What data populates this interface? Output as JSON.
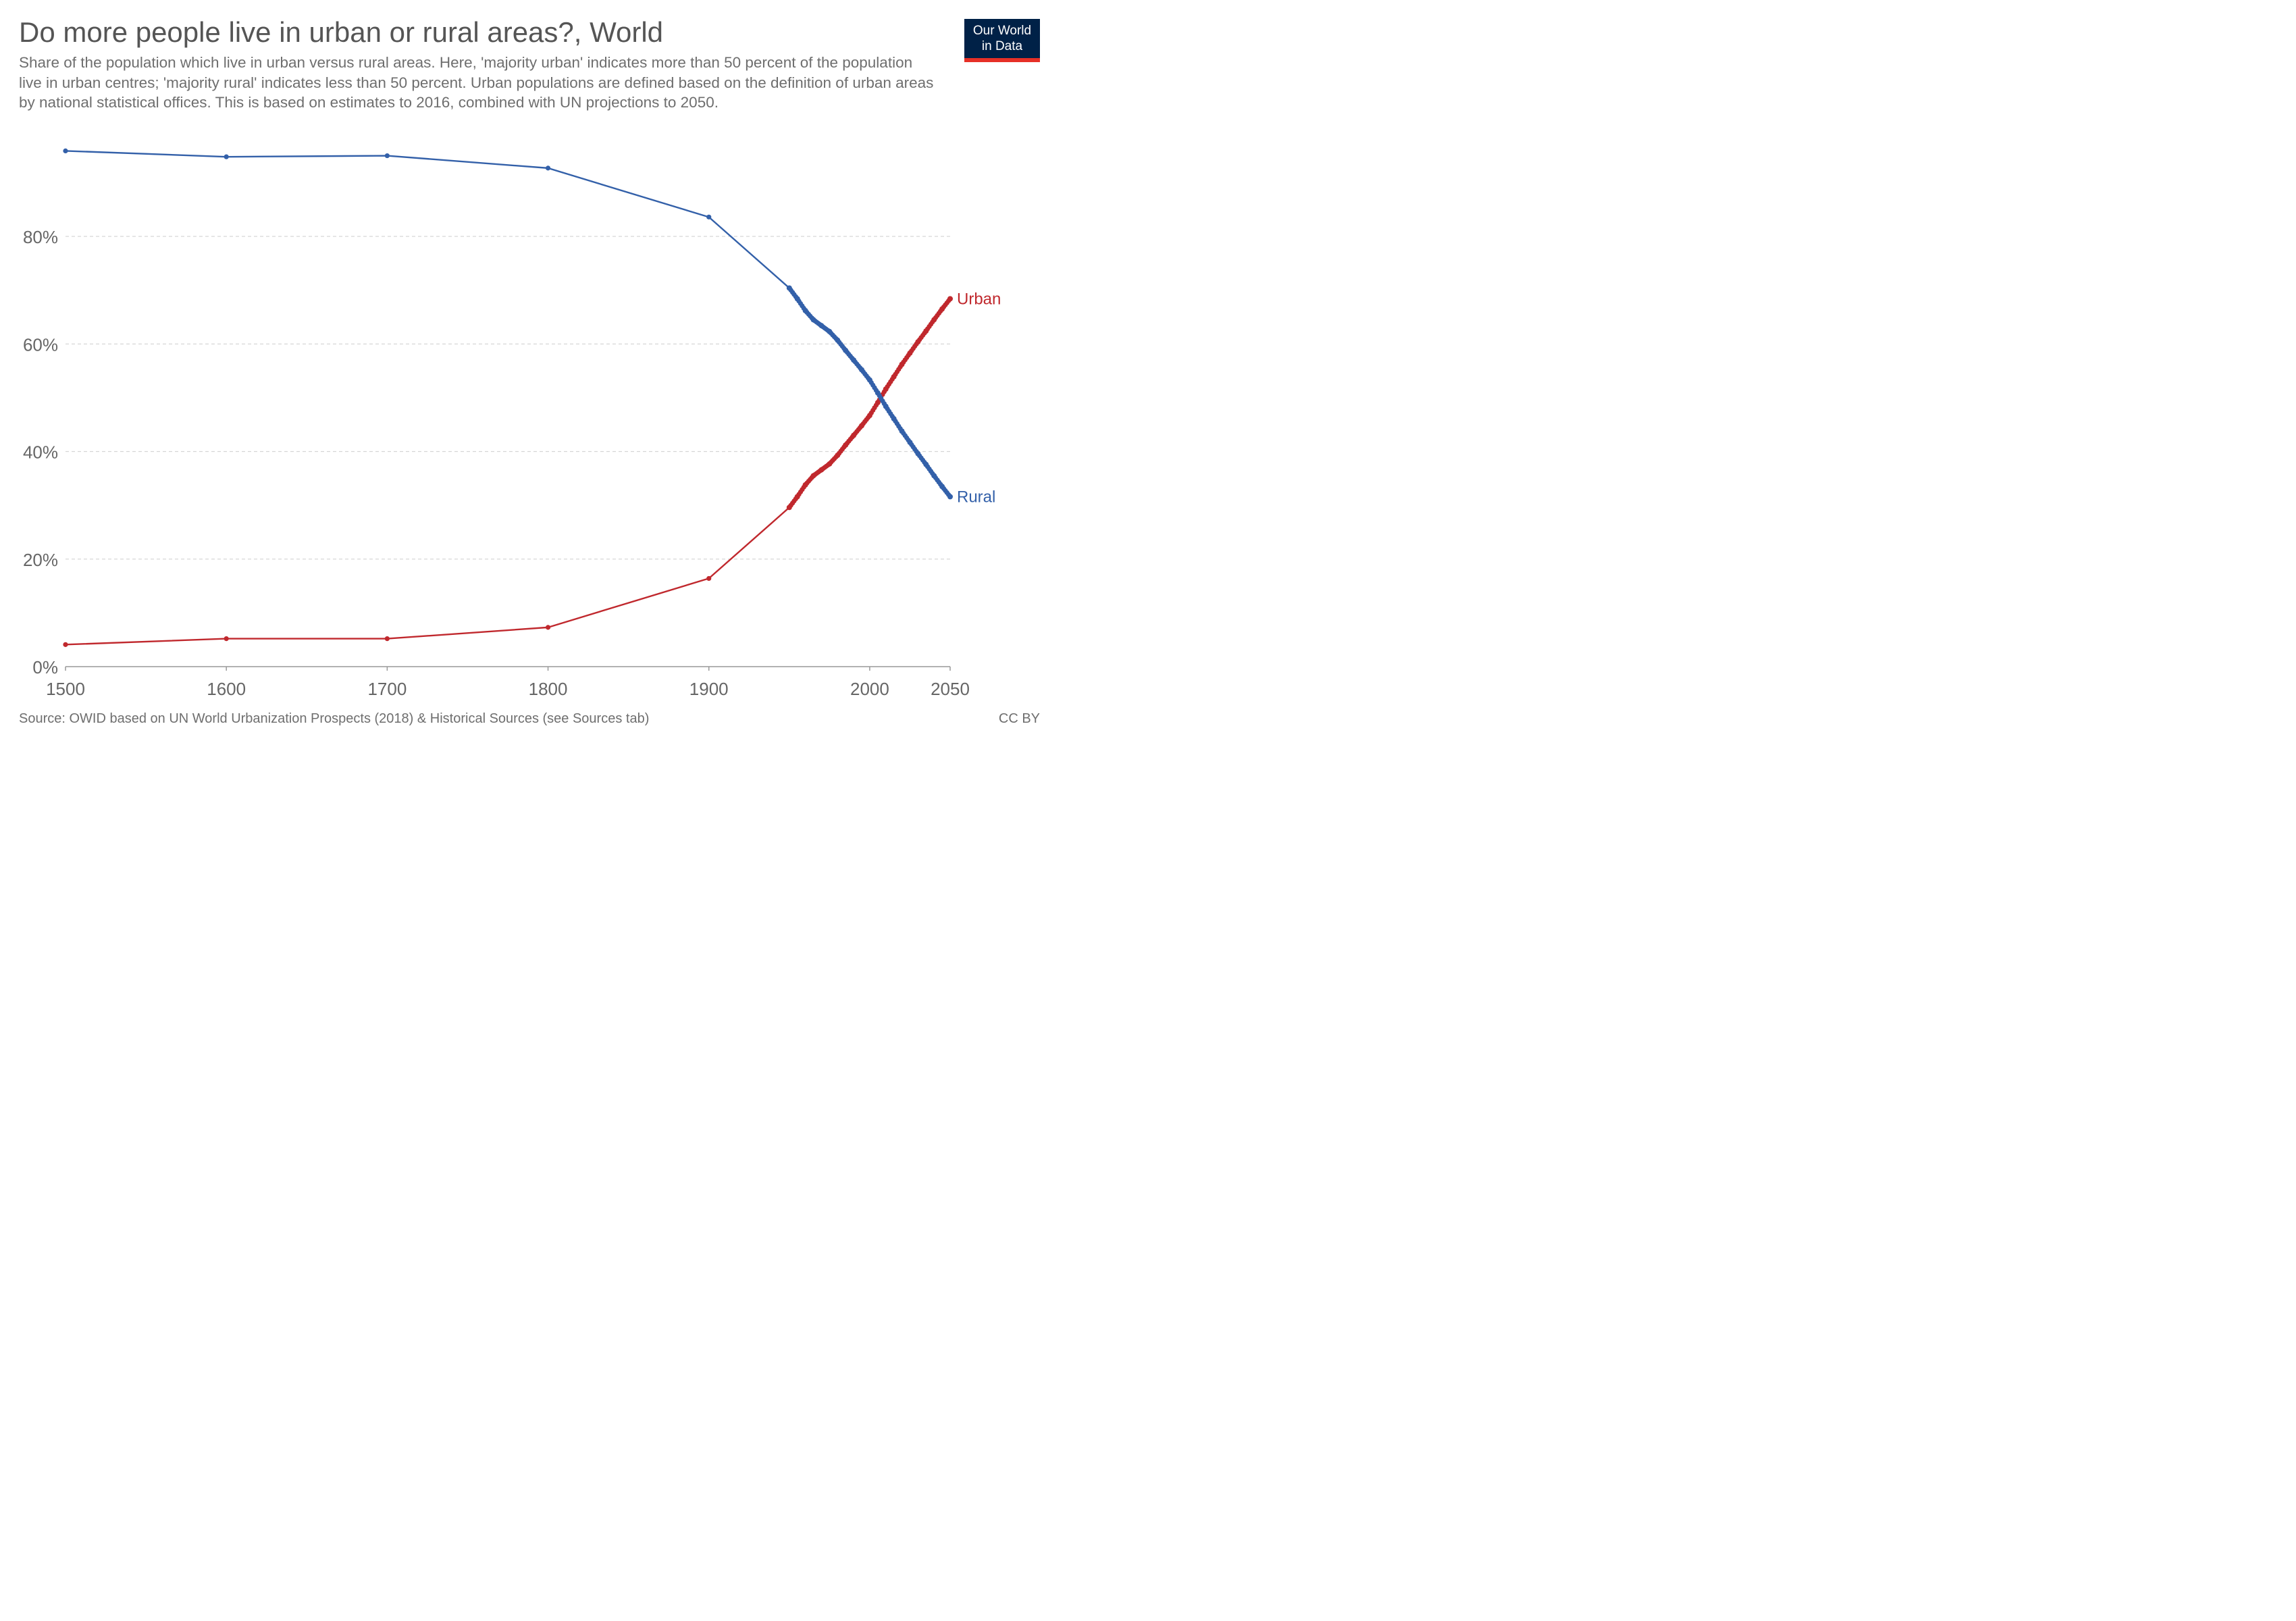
{
  "header": {
    "title": "Do more people live in urban or rural areas?, World",
    "subtitle": "Share of the population which live in urban versus rural areas. Here, 'majority urban' indicates more than 50 percent of the population live in urban centres; 'majority rural' indicates less than 50 percent. Urban populations are defined based on the definition of urban areas by national statistical offices. This is based on estimates to 2016, combined with UN projections to 2050."
  },
  "logo": {
    "line1": "Our World",
    "line2": "in Data",
    "bg_color": "#002147",
    "accent_color": "#e63027"
  },
  "footer": {
    "source": "Source: OWID based on UN World Urbanization Prospects (2018) & Historical Sources (see Sources tab)",
    "license": "CC BY"
  },
  "chart_data": {
    "type": "line",
    "title": "Do more people live in urban or rural areas?, World",
    "xlabel": "",
    "ylabel": "",
    "xlim": [
      1500,
      2050
    ],
    "ylim": [
      0,
      100
    ],
    "x_ticks": [
      1500,
      1600,
      1700,
      1800,
      1900,
      2000,
      2050
    ],
    "x_tick_labels": [
      "1500",
      "1600",
      "1700",
      "1800",
      "1900",
      "2000",
      "2050"
    ],
    "y_ticks": [
      0,
      20,
      40,
      60,
      80
    ],
    "y_tick_labels": [
      "0%",
      "20%",
      "40%",
      "60%",
      "80%"
    ],
    "grid": "horizontal dashed",
    "legend": "inline labels at line ends (right)",
    "series": [
      {
        "name": "Urban",
        "color": "#c0282d",
        "points": [
          [
            1500,
            4.1
          ],
          [
            1600,
            5.2
          ],
          [
            1700,
            5.2
          ],
          [
            1800,
            7.3
          ],
          [
            1900,
            16.4
          ],
          [
            1950,
            29.6
          ],
          [
            1955,
            31.6
          ],
          [
            1960,
            33.8
          ],
          [
            1965,
            35.5
          ],
          [
            1970,
            36.6
          ],
          [
            1975,
            37.7
          ],
          [
            1980,
            39.3
          ],
          [
            1985,
            41.2
          ],
          [
            1990,
            43.0
          ],
          [
            1995,
            44.8
          ],
          [
            2000,
            46.7
          ],
          [
            2005,
            49.1
          ],
          [
            2010,
            51.6
          ],
          [
            2015,
            53.9
          ],
          [
            2020,
            56.2
          ],
          [
            2025,
            58.3
          ],
          [
            2030,
            60.4
          ],
          [
            2035,
            62.4
          ],
          [
            2040,
            64.5
          ],
          [
            2045,
            66.5
          ],
          [
            2050,
            68.4
          ]
        ]
      },
      {
        "name": "Rural",
        "color": "#3360a9",
        "points": [
          [
            1500,
            95.9
          ],
          [
            1600,
            94.8
          ],
          [
            1700,
            95.0
          ],
          [
            1800,
            92.7
          ],
          [
            1900,
            83.6
          ],
          [
            1950,
            70.4
          ],
          [
            1955,
            68.4
          ],
          [
            1960,
            66.2
          ],
          [
            1965,
            64.5
          ],
          [
            1970,
            63.4
          ],
          [
            1975,
            62.3
          ],
          [
            1980,
            60.7
          ],
          [
            1985,
            58.8
          ],
          [
            1990,
            57.0
          ],
          [
            1995,
            55.2
          ],
          [
            2000,
            53.3
          ],
          [
            2005,
            50.9
          ],
          [
            2010,
            48.4
          ],
          [
            2015,
            46.1
          ],
          [
            2020,
            43.8
          ],
          [
            2025,
            41.7
          ],
          [
            2030,
            39.6
          ],
          [
            2035,
            37.6
          ],
          [
            2040,
            35.5
          ],
          [
            2045,
            33.5
          ],
          [
            2050,
            31.6
          ]
        ]
      }
    ]
  }
}
